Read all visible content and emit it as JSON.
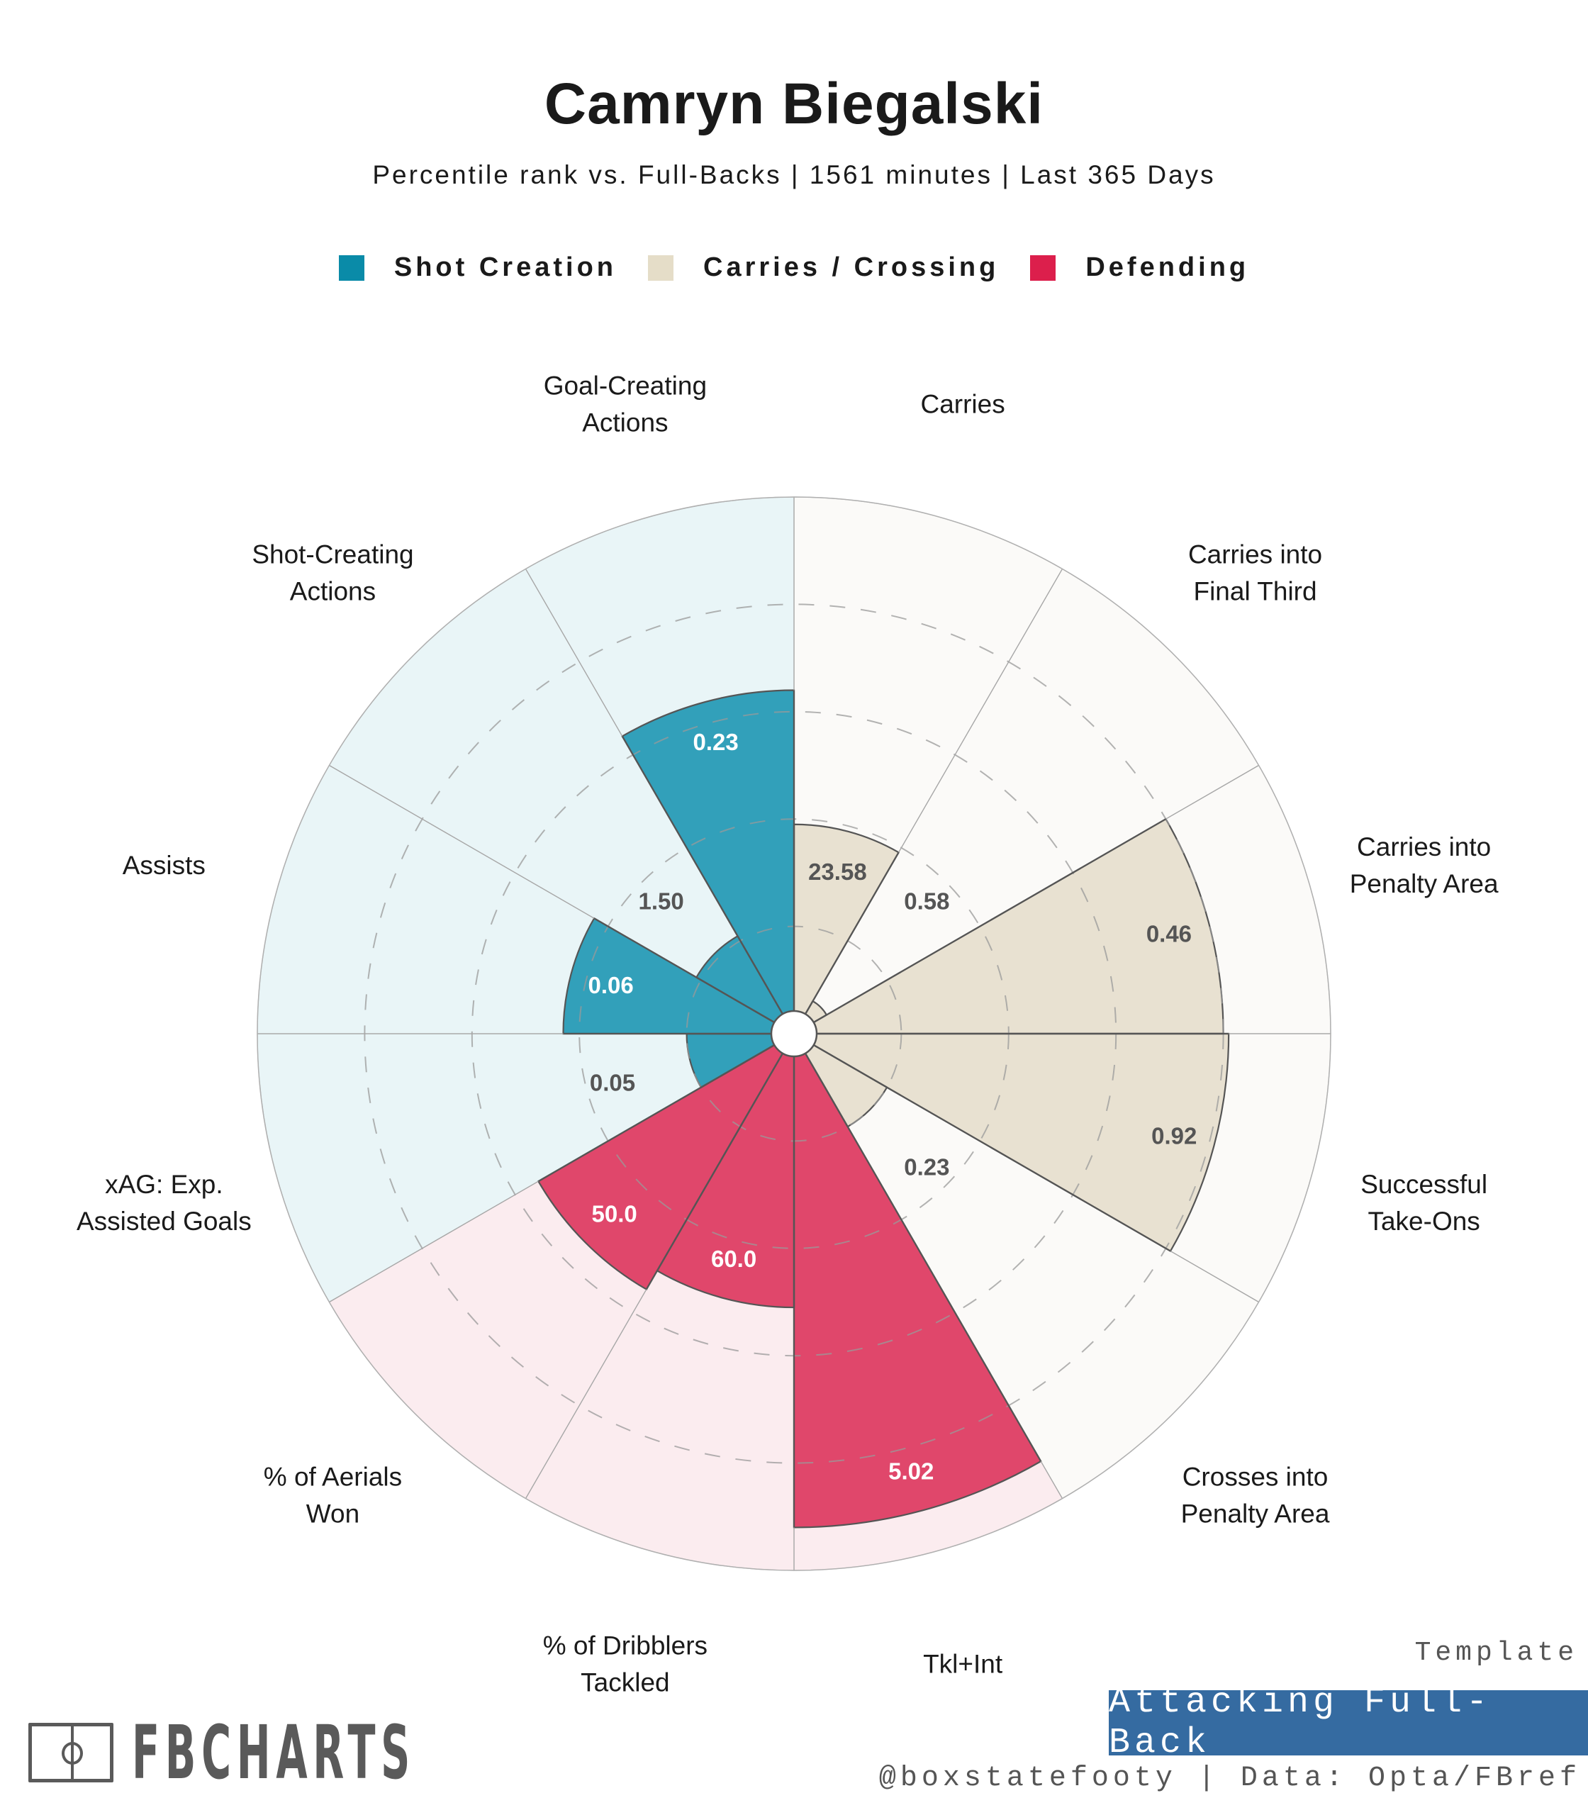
{
  "header": {
    "title": "Camryn Biegalski",
    "subtitle": "Percentile rank vs. Full-Backs | 1561 minutes | Last 365 Days"
  },
  "legend": [
    {
      "label": "Shot Creation",
      "color": "#0A8BA8"
    },
    {
      "label": "Carries / Crossing",
      "color": "#E5DDC8"
    },
    {
      "label": "Defending",
      "color": "#DC1F4C"
    }
  ],
  "chart_data": {
    "type": "pie",
    "subtype": "polar-bar (pizza) percentile chart",
    "title": "Camryn Biegalski",
    "radial_axis": {
      "min": 0,
      "max": 100,
      "gridlines": [
        20,
        40,
        60,
        80
      ],
      "grid": "dashed"
    },
    "groups": {
      "Shot Creation": {
        "bar_color": "#32A0BA",
        "bg_color": "#E9F5F7",
        "value_text_color": "#ffffff",
        "small_value_text_color": "#555555"
      },
      "Carries / Crossing": {
        "bar_color": "#E8E1D1",
        "bg_color": "#FBFAF8",
        "value_text_color": "#555555",
        "small_value_text_color": "#555555"
      },
      "Defending": {
        "bar_color": "#E0476B",
        "bg_color": "#FBECEF",
        "value_text_color": "#ffffff",
        "small_value_text_color": "#555555"
      }
    },
    "metrics": [
      {
        "label": "Carries",
        "group": "Carries / Crossing",
        "value": "23.58",
        "percentile": 39
      },
      {
        "label": "Carries into\nFinal Third",
        "group": "Carries / Crossing",
        "value": "0.58",
        "percentile": 7
      },
      {
        "label": "Carries into\nPenalty Area",
        "group": "Carries / Crossing",
        "value": "0.46",
        "percentile": 80
      },
      {
        "label": "Successful\nTake-Ons",
        "group": "Carries / Crossing",
        "value": "0.92",
        "percentile": 81
      },
      {
        "label": "Crosses into\nPenalty Area",
        "group": "Carries / Crossing",
        "value": "0.23",
        "percentile": 20
      },
      {
        "label": "Tkl+Int",
        "group": "Defending",
        "value": "5.02",
        "percentile": 92
      },
      {
        "label": "% of Dribblers\nTackled",
        "group": "Defending",
        "value": "60.0",
        "percentile": 51
      },
      {
        "label": "% of Aerials\nWon",
        "group": "Defending",
        "value": "50.0",
        "percentile": 55
      },
      {
        "label": "xAG: Exp.\nAssisted Goals",
        "group": "Shot Creation",
        "value": "0.05",
        "percentile": 20
      },
      {
        "label": "Assists",
        "group": "Shot Creation",
        "value": "0.06",
        "percentile": 43
      },
      {
        "label": "Shot-Creating\nActions",
        "group": "Shot Creation",
        "value": "1.50",
        "percentile": 21
      },
      {
        "label": "Goal-Creating\nActions",
        "group": "Shot Creation",
        "value": "0.23",
        "percentile": 64
      }
    ]
  },
  "footer": {
    "template_label": "Template",
    "template_name": "Attacking Full-Back",
    "credit": "@boxstatefooty | Data: Opta/FBref",
    "brand": "FBCHARTS",
    "brand_color": "#5A5A5A",
    "badge_color": "#356BA1"
  }
}
